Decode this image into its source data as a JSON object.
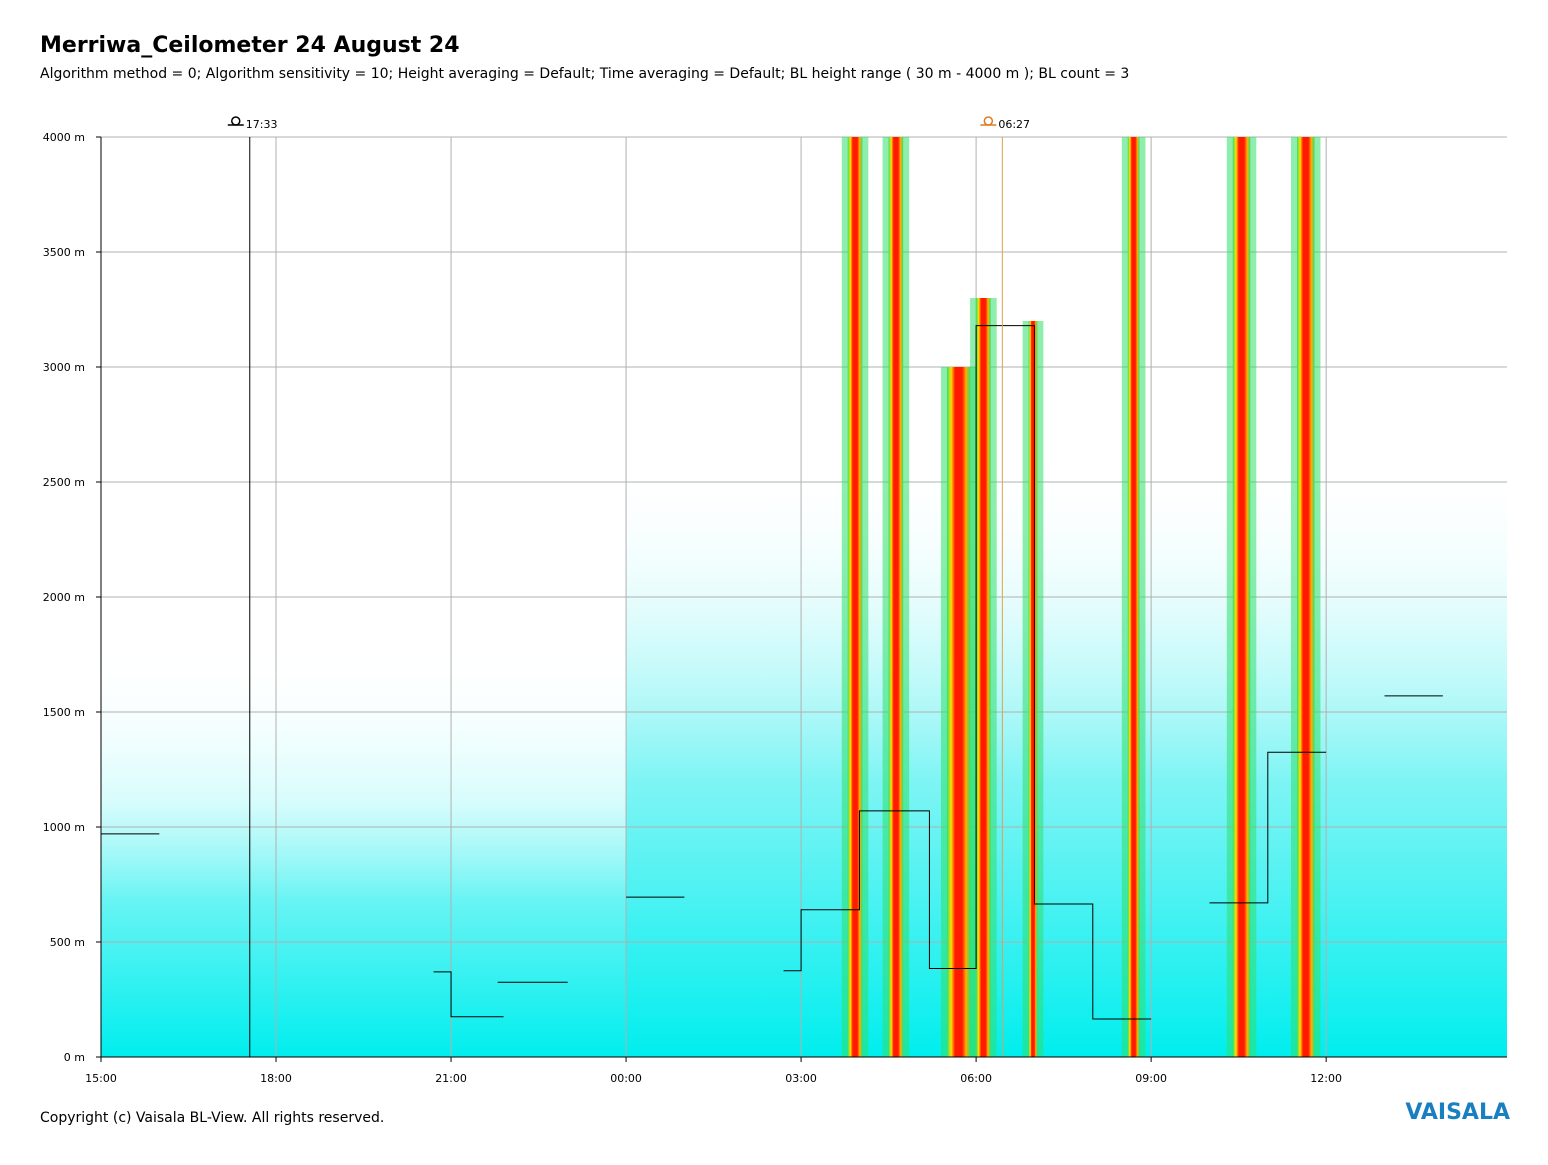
{
  "header": {
    "title": "Merriwa_Ceilometer 24 August 24",
    "subtitle": "Algorithm method = 0; Algorithm sensitivity = 10; Height averaging = Default; Time averaging = Default; BL height range ( 30 m - 4000 m ); BL count = 3"
  },
  "footer": {
    "copyright": "Copyright (c) Vaisala BL-View. All rights reserved.",
    "brand": "VAISALA"
  },
  "markers": {
    "sunset_label": "17:33",
    "sunrise_label": "06:27",
    "sunset_color": "#000000",
    "sunrise_color": "#e07a1f"
  },
  "chart_data": {
    "type": "heatmap",
    "title": "Merriwa_Ceilometer 24 August 24",
    "xlabel": "",
    "ylabel": "",
    "x_range_hours": [
      15,
      39.1
    ],
    "y_range_m": [
      0,
      4000
    ],
    "x_ticks": [
      "15:00",
      "18:00",
      "21:00",
      "00:00",
      "03:00",
      "06:00",
      "09:00",
      "12:00"
    ],
    "x_tick_hours": [
      15,
      18,
      21,
      24,
      27,
      30,
      33,
      36
    ],
    "y_ticks": [
      "0 m",
      "500 m",
      "1000 m",
      "1500 m",
      "2000 m",
      "2500 m",
      "3000 m",
      "3500 m",
      "4000 m"
    ],
    "y_tick_values": [
      0,
      500,
      1000,
      1500,
      2000,
      2500,
      3000,
      3500,
      4000
    ],
    "grid": true,
    "sun_events": [
      {
        "name": "sunset",
        "time": "17:33",
        "hour": 17.55
      },
      {
        "name": "sunrise",
        "time": "06:27",
        "hour": 30.45
      }
    ],
    "bl_height_steps": [
      {
        "x0": 15.0,
        "x1": 16.0,
        "y": 970
      },
      {
        "x0": 20.7,
        "x1": 21.0,
        "y": 370
      },
      {
        "x0": 21.0,
        "x1": 21.9,
        "y": 175
      },
      {
        "x0": 21.8,
        "x1": 23.0,
        "y": 325
      },
      {
        "x0": 24.0,
        "x1": 25.0,
        "y": 695
      },
      {
        "x0": 26.7,
        "x1": 27.0,
        "y": 375
      },
      {
        "x0": 27.0,
        "x1": 28.0,
        "y": 640
      },
      {
        "x0": 28.0,
        "x1": 29.2,
        "y": 1070
      },
      {
        "x0": 29.2,
        "x1": 30.0,
        "y": 385
      },
      {
        "x0": 30.0,
        "x1": 31.0,
        "y": 3180
      },
      {
        "x0": 31.0,
        "x1": 32.0,
        "y": 665
      },
      {
        "x0": 32.0,
        "x1": 33.0,
        "y": 165
      },
      {
        "x0": 34.0,
        "x1": 35.0,
        "y": 670
      },
      {
        "x0": 35.0,
        "x1": 36.0,
        "y": 1325
      },
      {
        "x0": 37.0,
        "x1": 38.0,
        "y": 1570
      }
    ],
    "cloud_columns": [
      {
        "x0": 27.8,
        "x1": 28.05,
        "ytop": 4000
      },
      {
        "x0": 28.5,
        "x1": 28.75,
        "ytop": 4000
      },
      {
        "x0": 29.5,
        "x1": 29.9,
        "ytop": 3000
      },
      {
        "x0": 30.0,
        "x1": 30.25,
        "ytop": 3300
      },
      {
        "x0": 30.9,
        "x1": 31.05,
        "ytop": 3200
      },
      {
        "x0": 32.6,
        "x1": 32.8,
        "ytop": 4000
      },
      {
        "x0": 34.4,
        "x1": 34.7,
        "ytop": 4000
      },
      {
        "x0": 35.5,
        "x1": 35.8,
        "ytop": 4000
      }
    ],
    "colors": {
      "low_backscatter": "#00f5f5",
      "mid_backscatter": "#2fe06a",
      "high_backscatter": "#ff1a00",
      "medium_high": "#ffb000",
      "bl_marker": "#1b8a6b",
      "cloud_dot": "#1a6fb5",
      "grid": "#b0b0b0"
    }
  }
}
